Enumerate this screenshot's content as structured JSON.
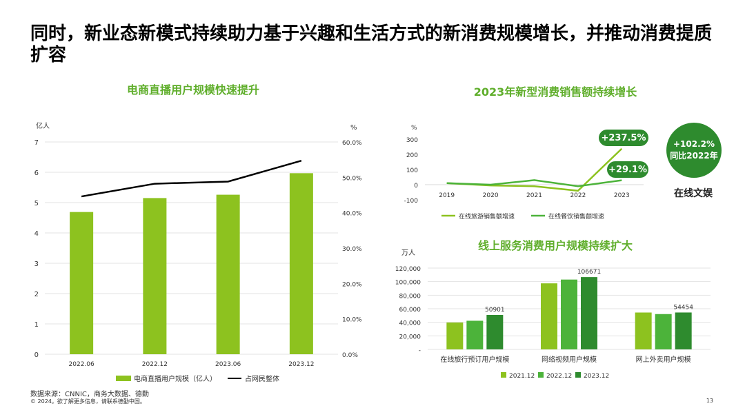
{
  "page": {
    "title": "同时，新业态新模式持续助力基于兴趣和生活方式的新消费规模增长，并推动消费提质扩容",
    "footer_source": "数据来源：CNNIC，商务大数据、德勤",
    "footer_copyright": "© 2024。欲了解更多信息，请联系德勤中国。",
    "page_number": "13"
  },
  "colors": {
    "bar_green": "#8dc21f",
    "title_green": "#5fae2b",
    "line_black": "#000000",
    "series_light": "#8dc21f",
    "series_mid": "#4cb33a",
    "series_dark": "#2e8b2e"
  },
  "badge": {
    "value": "+102.2%",
    "sub": "同比2022年",
    "category": "在线文娱"
  },
  "chart_data": [
    {
      "type": "bar",
      "title": "电商直播用户规模快速提升",
      "categories": [
        "2022.06",
        "2022.12",
        "2023.06",
        "2023.12"
      ],
      "series": [
        {
          "name": "电商直播用户规模（亿人）",
          "type": "bar",
          "axis": "left",
          "values": [
            4.69,
            5.15,
            5.26,
            5.97
          ]
        },
        {
          "name": "占网民整体",
          "type": "line",
          "axis": "right",
          "values": [
            44.6,
            48.2,
            48.8,
            54.7
          ]
        }
      ],
      "y_unit": "亿人",
      "y2_unit": "%",
      "ylim": [
        0,
        7
      ],
      "y_ticks": [
        "0",
        "1",
        "2",
        "3",
        "4",
        "5",
        "6",
        "7"
      ],
      "y2lim": [
        0,
        60
      ],
      "y2_ticks": [
        "0.0%",
        "10.0%",
        "20.0%",
        "30.0%",
        "40.0%",
        "50.0%",
        "60.0%"
      ],
      "grid": true
    },
    {
      "type": "line",
      "title": "2023年新型消费销售额持续增长",
      "x": [
        "2019",
        "2020",
        "2021",
        "2022",
        "2023"
      ],
      "series": [
        {
          "name": "在线旅游销售额增速",
          "values": [
            10,
            -5,
            -10,
            -40,
            237.5
          ]
        },
        {
          "name": "在线餐饮销售额增速",
          "values": [
            10,
            0,
            30,
            -10,
            29.1
          ]
        }
      ],
      "annotations": [
        "+237.5%",
        "+29.1%"
      ],
      "y_unit": "%",
      "ylim": [
        -100,
        300
      ],
      "y_ticks": [
        "-100",
        "0",
        "100",
        "200",
        "300"
      ]
    },
    {
      "type": "bar",
      "title": "线上服务消费用户规模持续扩大",
      "y_unit": "万人",
      "categories": [
        "在线旅行预订用户规模",
        "网络视频用户规模",
        "网上外卖用户规模"
      ],
      "series": [
        {
          "name": "2021.12",
          "values": [
            39710,
            97471,
            54416
          ]
        },
        {
          "name": "2022.12",
          "values": [
            42272,
            103057,
            52116
          ]
        },
        {
          "name": "2023.12",
          "values": [
            50901,
            106671,
            54454
          ]
        }
      ],
      "data_labels": [
        "50901",
        "106671",
        "54454"
      ],
      "ylim": [
        0,
        120000
      ],
      "y_ticks": [
        "-",
        "20,000",
        "40,000",
        "60,000",
        "80,000",
        "100,000",
        "120,000"
      ],
      "grid": true
    }
  ]
}
